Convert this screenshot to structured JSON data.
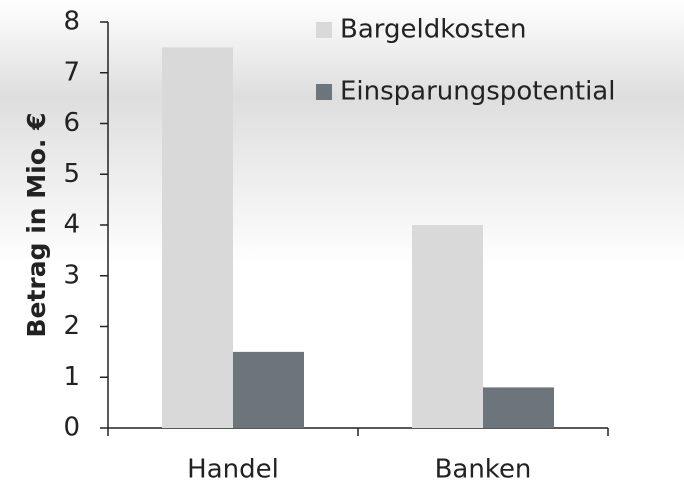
{
  "chart_data": {
    "type": "bar",
    "categories": [
      "Handel",
      "Banken"
    ],
    "series": [
      {
        "name": "Bargeldkosten",
        "color": "#d9d9d9",
        "values": [
          7.5,
          4.0
        ]
      },
      {
        "name": "Einsparungspotential",
        "color": "#6d757c",
        "values": [
          1.5,
          0.8
        ]
      }
    ],
    "y_label": "Betrag in Mio. €",
    "ylim": [
      0,
      8
    ],
    "yticks": [
      0,
      1,
      2,
      3,
      4,
      5,
      6,
      7,
      8
    ],
    "grid": false,
    "legend": "top-right"
  }
}
